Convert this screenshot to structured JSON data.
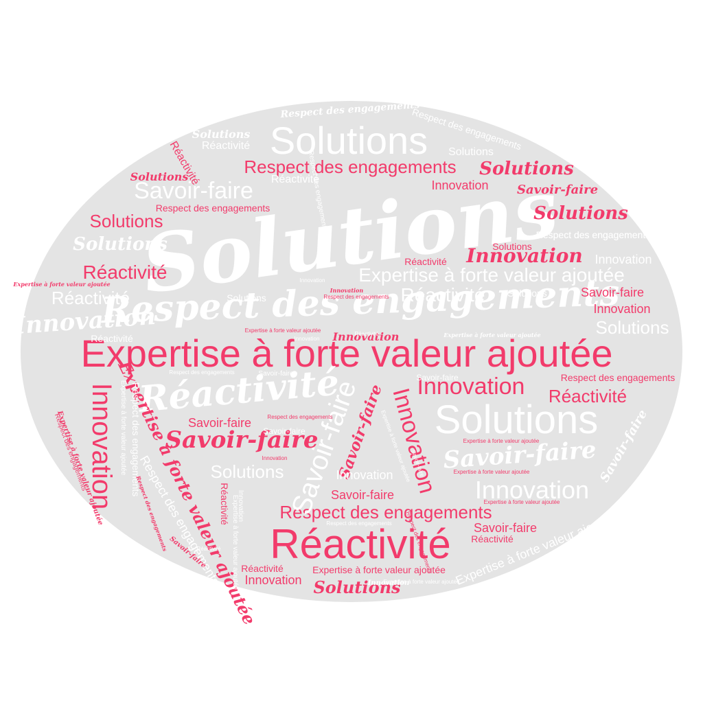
{
  "words": {
    "solutions": "Solutions",
    "respect": "Respect des engagements",
    "expertise": "Expertise à forte valeur ajoutée",
    "reactivite": "Réactivité",
    "savoir_faire": "Savoir-faire",
    "innovation": "Innovation"
  },
  "colors": {
    "background": "#ffffff",
    "ellipse": "#e4e4e4",
    "accent": "#f23b6b",
    "light": "#ffffff"
  }
}
